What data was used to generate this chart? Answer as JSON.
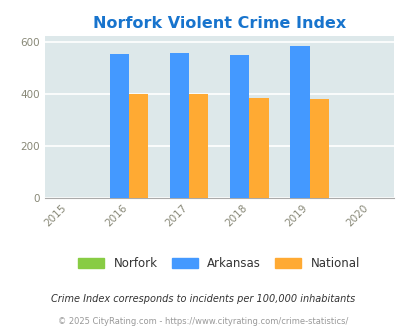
{
  "title": "Norfork Violent Crime Index",
  "title_color": "#1874CD",
  "years": [
    2015,
    2016,
    2017,
    2018,
    2019,
    2020
  ],
  "bar_years": [
    2016,
    2017,
    2018,
    2019
  ],
  "norfork_values": [
    0,
    0,
    0,
    0
  ],
  "arkansas_values": [
    551,
    557,
    547,
    584
  ],
  "national_values": [
    400,
    397,
    383,
    378
  ],
  "arkansas_color": "#4499FF",
  "national_color": "#FFAA33",
  "norfork_color": "#88CC44",
  "bar_width": 0.32,
  "ylim": [
    0,
    620
  ],
  "yticks": [
    0,
    200,
    400,
    600
  ],
  "background_color": "#DDE8EA",
  "grid_color": "#FFFFFF",
  "legend_labels": [
    "Norfork",
    "Arkansas",
    "National"
  ],
  "footnote1": "Crime Index corresponds to incidents per 100,000 inhabitants",
  "footnote2": "© 2025 CityRating.com - https://www.cityrating.com/crime-statistics/"
}
